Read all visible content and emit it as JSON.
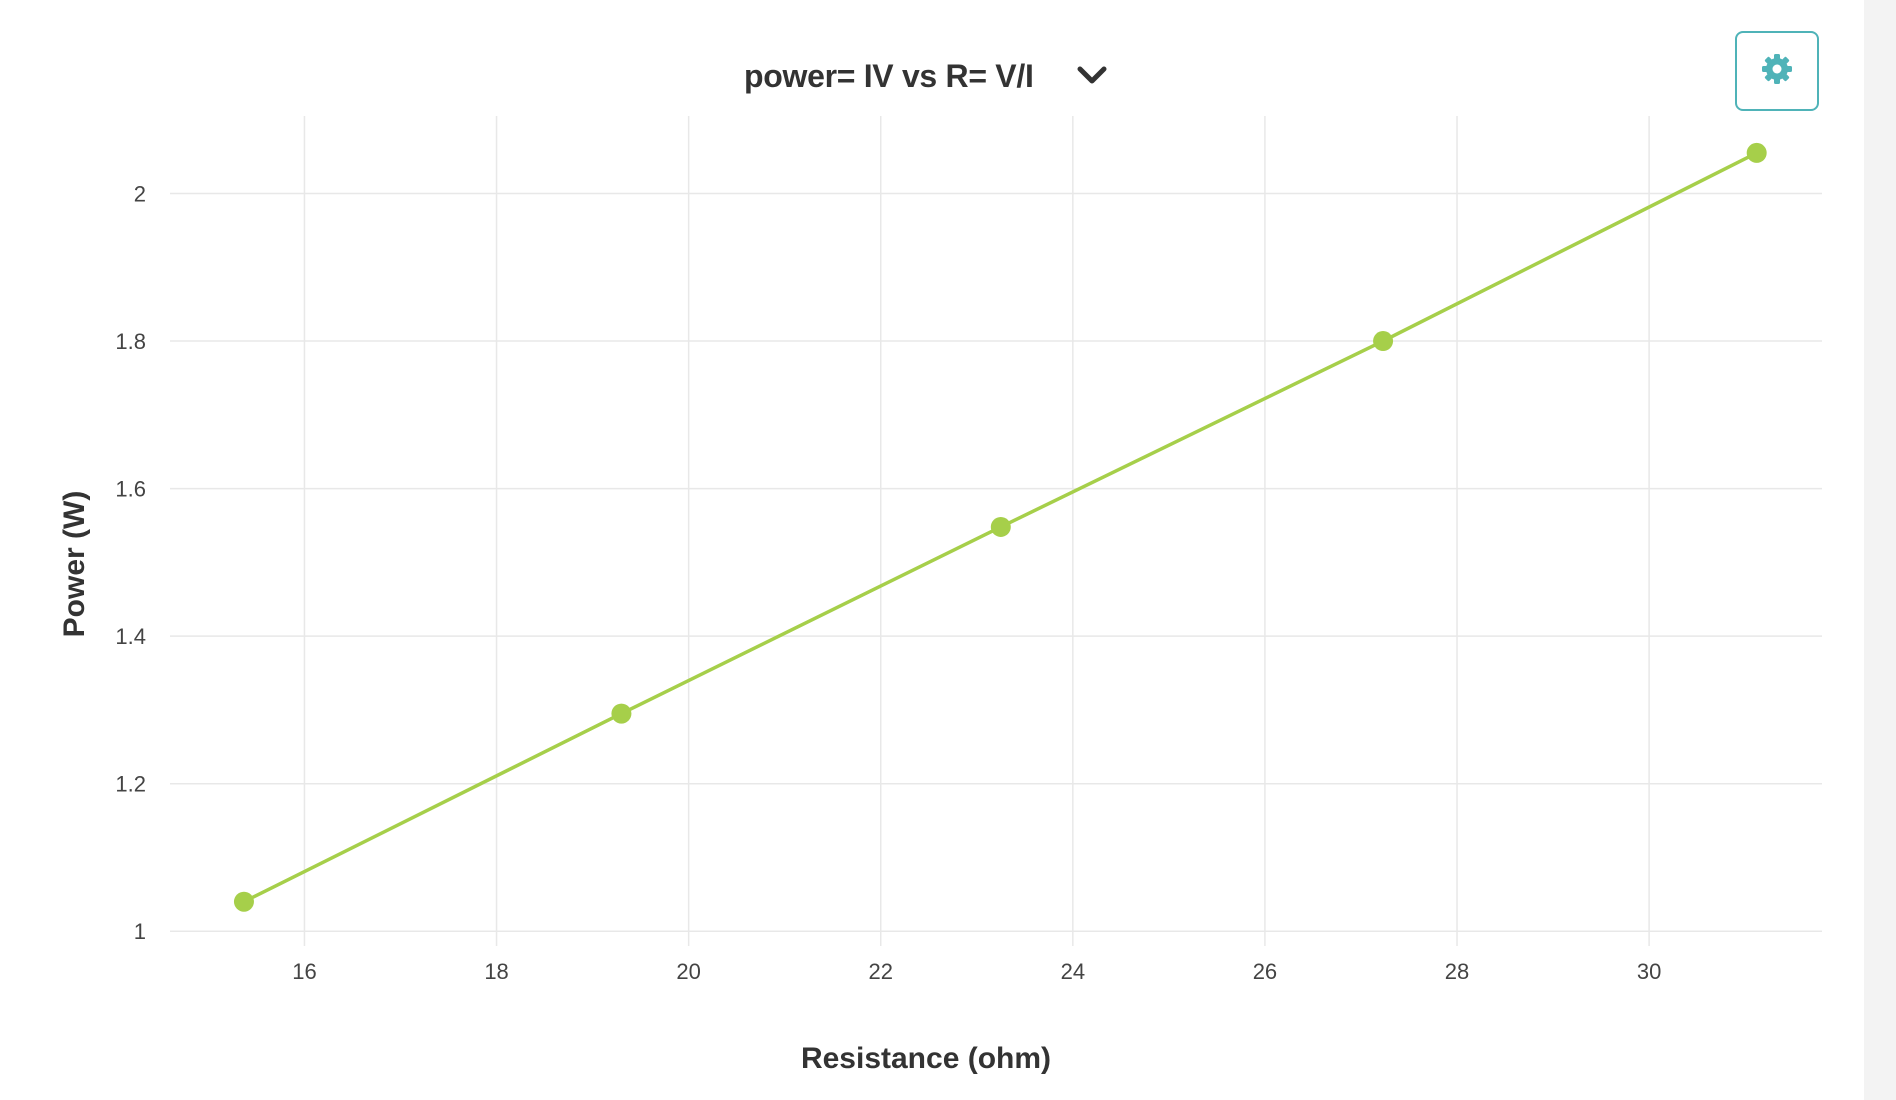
{
  "header": {
    "chart_selector_label": "power= IV vs R= V/I"
  },
  "colors": {
    "series": "#a6cf4a",
    "grid": "#e8e8e8",
    "accent": "#4fb3b8"
  },
  "icons": {
    "dropdown": "chevron-down-icon",
    "settings": "gear-icon"
  },
  "chart_data": {
    "type": "line",
    "xlabel": "Resistance (ohm)",
    "ylabel": "Power (W)",
    "xlim": [
      14.6,
      31.8
    ],
    "ylim": [
      0.98,
      2.105
    ],
    "xticks": [
      16,
      18,
      20,
      22,
      24,
      26,
      28,
      30
    ],
    "yticks": [
      1,
      1.2,
      1.4,
      1.6,
      1.8,
      2
    ],
    "xtick_labels": [
      "16",
      "18",
      "20",
      "22",
      "24",
      "26",
      "28",
      "30"
    ],
    "ytick_labels": [
      "1",
      "1.2",
      "1.4",
      "1.6",
      "1.8",
      "2"
    ],
    "grid": true,
    "series": [
      {
        "x": [
          15.37,
          19.3,
          23.25,
          27.23,
          31.12
        ],
        "y": [
          1.04,
          1.295,
          1.548,
          1.8,
          2.055
        ],
        "markers": true
      }
    ]
  }
}
